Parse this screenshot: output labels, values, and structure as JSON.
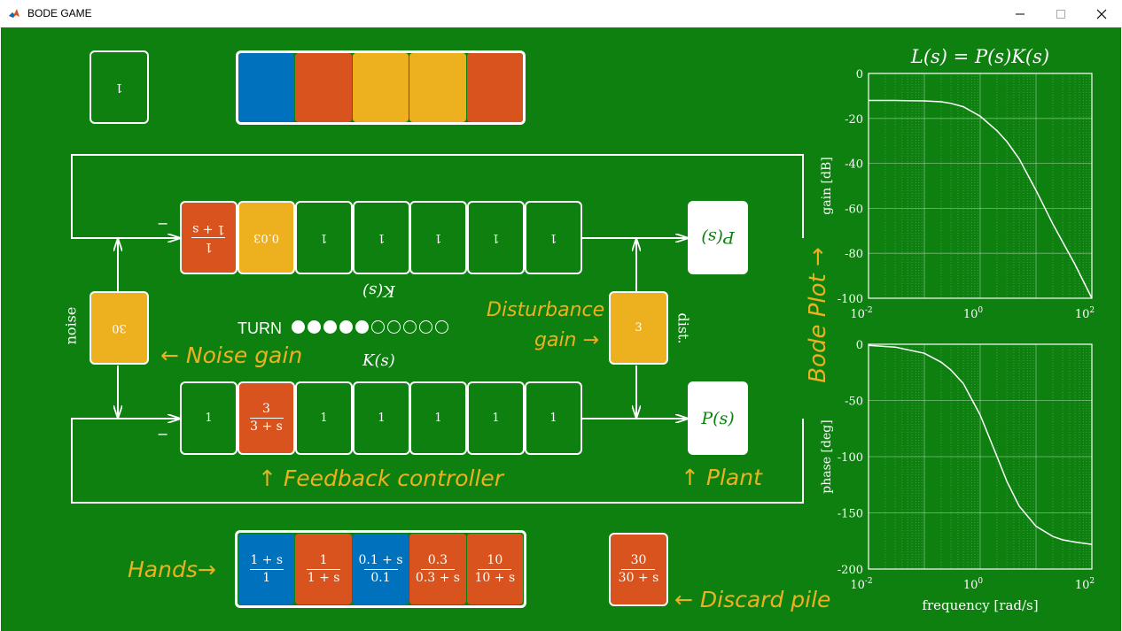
{
  "window": {
    "title": "BODE GAME"
  },
  "colors": {
    "board": "#0e8010",
    "orange": "#d9531e",
    "yellow": "#edb120",
    "blue": "#0072bd",
    "label": "#edb120"
  },
  "opponent": {
    "noise_card": "1",
    "hand_colors": [
      "blue",
      "orange",
      "yellow",
      "yellow",
      "orange"
    ],
    "controller_cards": [
      {
        "type": "frac",
        "num": "1",
        "den": "1 + s",
        "color": "orange"
      },
      {
        "type": "plain",
        "text": "0.03",
        "color": "yellow"
      },
      {
        "type": "plain",
        "text": "1",
        "color": "green"
      },
      {
        "type": "plain",
        "text": "1",
        "color": "green"
      },
      {
        "type": "plain",
        "text": "1",
        "color": "green"
      },
      {
        "type": "plain",
        "text": "1",
        "color": "green"
      },
      {
        "type": "plain",
        "text": "1",
        "color": "green"
      }
    ],
    "plant_label": "P(s)",
    "controller_label": "K(s)",
    "minus": "−"
  },
  "shared": {
    "noise_gain_card": "30",
    "noise_side_label": "noise",
    "disturbance_card": "3",
    "disturbance_side_label": "dist.",
    "turn_label": "TURN",
    "turn_total": 10,
    "turn_filled": 5
  },
  "player": {
    "controller_label": "K(s)",
    "controller_cards": [
      {
        "type": "plain",
        "text": "1",
        "color": "green"
      },
      {
        "type": "frac",
        "num": "3",
        "den": "3 + s",
        "color": "orange"
      },
      {
        "type": "plain",
        "text": "1",
        "color": "green"
      },
      {
        "type": "plain",
        "text": "1",
        "color": "green"
      },
      {
        "type": "plain",
        "text": "1",
        "color": "green"
      },
      {
        "type": "plain",
        "text": "1",
        "color": "green"
      },
      {
        "type": "plain",
        "text": "1",
        "color": "green"
      }
    ],
    "plant_label": "P(s)",
    "minus": "−",
    "hand_cards": [
      {
        "num": "1 + s",
        "den": "1",
        "color": "blue"
      },
      {
        "num": "1",
        "den": "1 + s",
        "color": "orange"
      },
      {
        "num": "0.1 + s",
        "den": "0.1",
        "color": "blue"
      },
      {
        "num": "0.3",
        "den": "0.3 + s",
        "color": "orange"
      },
      {
        "num": "10",
        "den": "10 + s",
        "color": "orange"
      }
    ],
    "discard_card": {
      "num": "30",
      "den": "30 + s",
      "color": "orange"
    }
  },
  "annotations": {
    "noise_gain": "← Noise gain",
    "disturbance_gain_line1": "Disturbance",
    "disturbance_gain_line2": "gain →",
    "feedback_controller": "↑ Feedback controller",
    "plant": "↑ Plant",
    "hands": "Hands→",
    "discard_pile": "← Discard pile",
    "bode_plot": "Bode Plot →"
  },
  "chart_data": [
    {
      "type": "line",
      "title": "L(s) = P(s)K(s)",
      "xlabel": "",
      "ylabel": "gain [dB]",
      "xscale": "log",
      "xlim": [
        0.01,
        100
      ],
      "ylim": [
        -100,
        0
      ],
      "x_ticks": [
        "10-2",
        "100",
        "102"
      ],
      "y_ticks": [
        0,
        -20,
        -40,
        -60,
        -80,
        -100
      ],
      "grid": true,
      "series": [
        {
          "x": [
            0.01,
            0.03,
            0.1,
            0.2,
            0.3,
            0.5,
            1,
            2,
            3,
            5,
            10,
            20,
            30,
            50,
            100
          ],
          "y": [
            -12,
            -12,
            -12.2,
            -12.6,
            -13.3,
            -14.8,
            -19,
            -25.5,
            -30.3,
            -38,
            -52,
            -67,
            -75,
            -85,
            -100
          ]
        }
      ]
    },
    {
      "type": "line",
      "title": "",
      "xlabel": "frequency [rad/s]",
      "ylabel": "phase [deg]",
      "xscale": "log",
      "xlim": [
        0.01,
        100
      ],
      "ylim": [
        -200,
        0
      ],
      "x_ticks": [
        "10-2",
        "100",
        "102"
      ],
      "y_ticks": [
        0,
        -50,
        -100,
        -150,
        -200
      ],
      "grid": true,
      "series": [
        {
          "x": [
            0.01,
            0.03,
            0.1,
            0.2,
            0.3,
            0.5,
            1,
            2,
            3,
            5,
            10,
            20,
            30,
            50,
            100
          ],
          "y": [
            -1,
            -2.5,
            -8,
            -16,
            -23,
            -35,
            -63,
            -100,
            -122,
            -144,
            -162,
            -171,
            -174,
            -176,
            -178
          ]
        }
      ]
    }
  ]
}
